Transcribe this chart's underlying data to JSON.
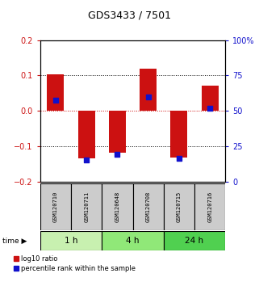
{
  "title": "GDS3433 / 7501",
  "samples": [
    "GSM120710",
    "GSM120711",
    "GSM120648",
    "GSM120708",
    "GSM120715",
    "GSM120716"
  ],
  "log10_ratio": [
    0.103,
    -0.135,
    -0.118,
    0.12,
    -0.132,
    0.072
  ],
  "percentile_rank": [
    57.5,
    15.5,
    19.5,
    60.0,
    16.5,
    52.0
  ],
  "time_groups": [
    {
      "label": "1 h",
      "start": 0,
      "end": 2,
      "color": "#c8f0b0"
    },
    {
      "label": "4 h",
      "start": 2,
      "end": 4,
      "color": "#90e878"
    },
    {
      "label": "24 h",
      "start": 4,
      "end": 6,
      "color": "#50d050"
    }
  ],
  "ylim_left": [
    -0.2,
    0.2
  ],
  "ylim_right": [
    0,
    100
  ],
  "yticks_left": [
    -0.2,
    -0.1,
    0.0,
    0.1,
    0.2
  ],
  "yticks_right": [
    0,
    25,
    50,
    75,
    100
  ],
  "ytick_labels_right": [
    "0",
    "25",
    "50",
    "75",
    "100%"
  ],
  "bar_color": "#cc1111",
  "dot_color": "#1111cc",
  "background_color": "#ffffff",
  "bar_width": 0.55,
  "dot_size": 18,
  "sample_box_color": "#cccccc",
  "zero_line_color": "#cc0000",
  "title_color": "#000000",
  "title_fontsize": 9,
  "tick_fontsize": 7,
  "sample_fontsize": 5,
  "time_fontsize": 7.5,
  "legend_fontsize": 6
}
